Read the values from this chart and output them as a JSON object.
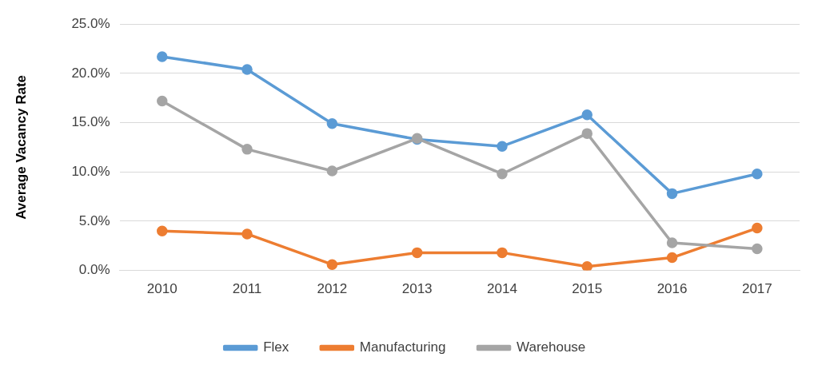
{
  "chart_data": {
    "type": "line",
    "ylabel": "Average Vacancy Rate",
    "categories": [
      "2010",
      "2011",
      "2012",
      "2013",
      "2014",
      "2015",
      "2016",
      "2017"
    ],
    "series": [
      {
        "name": "Flex",
        "color": "#5b9bd5",
        "values": [
          21.7,
          20.4,
          14.9,
          13.3,
          12.6,
          15.8,
          7.8,
          9.8
        ]
      },
      {
        "name": "Manufacturing",
        "color": "#ed7d31",
        "values": [
          4.0,
          3.7,
          0.6,
          1.8,
          1.8,
          0.4,
          1.3,
          4.3
        ]
      },
      {
        "name": "Warehouse",
        "color": "#a5a5a5",
        "values": [
          17.2,
          12.3,
          10.1,
          13.4,
          9.8,
          13.9,
          2.8,
          2.2
        ]
      }
    ],
    "ylim": [
      0,
      25
    ],
    "yticks": [
      {
        "value": 0,
        "label": "0.0%"
      },
      {
        "value": 5,
        "label": "5.0%"
      },
      {
        "value": 10,
        "label": "10.0%"
      },
      {
        "value": 15,
        "label": "15.0%"
      },
      {
        "value": 20,
        "label": "20.0%"
      },
      {
        "value": 25,
        "label": "25.0%"
      }
    ],
    "grid": "y",
    "legend": "bottom",
    "marker": "circle",
    "line_style": "solid"
  }
}
